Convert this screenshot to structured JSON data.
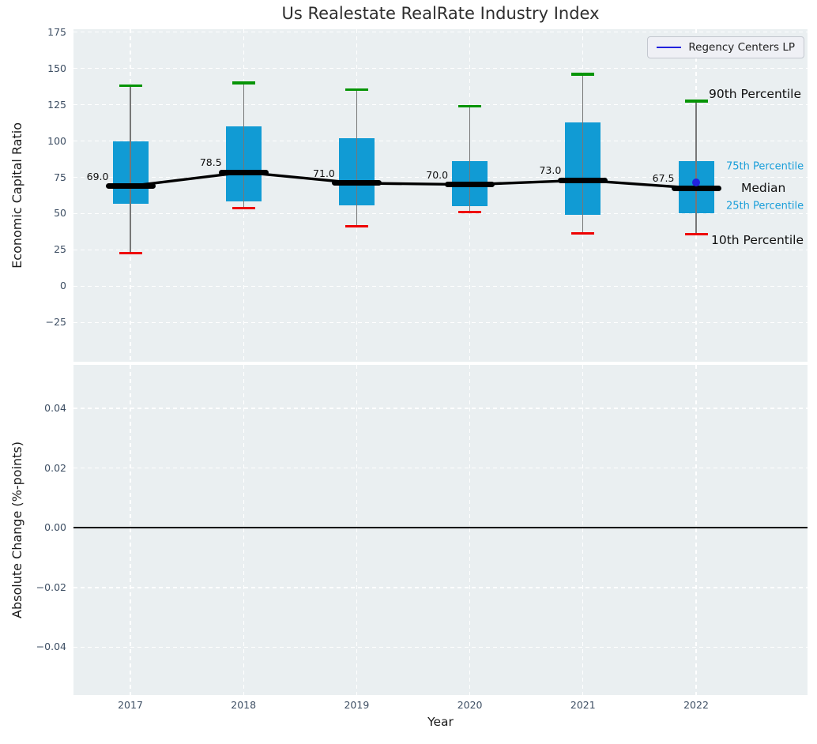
{
  "title": "Us Realestate RealRate Industry Index",
  "xlabel": "Year",
  "legend_label": "Regency Centers LP",
  "top_panel": {
    "ylabel": "Economic Capital Ratio"
  },
  "bottom_panel": {
    "ylabel": "Absolute Change (%-points)"
  },
  "colors": {
    "box": "#119bd4",
    "whisker": "#777777",
    "cap_90th": "#069406",
    "cap_10th": "#ee0000",
    "median": "#000000",
    "company_line": "#2222dd",
    "panel_background": "#eaeff1",
    "grid": "#ffffff",
    "tick_label": "#3d4e63",
    "accent_text": "#1a9ed9"
  },
  "chart_data": {
    "type": "boxplot",
    "title": "Us Realestate RealRate Industry Index",
    "xlabel": "Year",
    "categories": [
      "2017",
      "2018",
      "2019",
      "2020",
      "2021",
      "2022"
    ],
    "legend": {
      "entries": [
        {
          "label": "Regency Centers LP",
          "color": "#2222dd"
        }
      ],
      "position": "upper right"
    },
    "panels": [
      {
        "ylabel": "Economic Capital Ratio",
        "ylim": [
          -52,
          177
        ],
        "grid": true,
        "yticks": [
          {
            "v": 175,
            "label": "175"
          },
          {
            "v": 150,
            "label": "150"
          },
          {
            "v": 125,
            "label": "125"
          },
          {
            "v": 100,
            "label": "100"
          },
          {
            "v": 75,
            "label": "75"
          },
          {
            "v": 50,
            "label": "50"
          },
          {
            "v": 25,
            "label": "25"
          },
          {
            "v": 0,
            "label": "0"
          },
          {
            "v": -25,
            "label": "−25"
          }
        ],
        "boxes": [
          {
            "year": "2017",
            "p10": 23,
            "q1": 57,
            "median": 69.0,
            "q3": 99.5,
            "p90": 138,
            "median_label": "69.0"
          },
          {
            "year": "2018",
            "p10": 54,
            "q1": 58.5,
            "median": 78.5,
            "q3": 110,
            "p90": 140,
            "median_label": "78.5"
          },
          {
            "year": "2019",
            "p10": 41.5,
            "q1": 55.5,
            "median": 71.0,
            "q3": 102,
            "p90": 135.5,
            "median_label": "71.0"
          },
          {
            "year": "2020",
            "p10": 51,
            "q1": 55,
            "median": 70.0,
            "q3": 86,
            "p90": 124,
            "median_label": "70.0"
          },
          {
            "year": "2021",
            "p10": 36.5,
            "q1": 49,
            "median": 73.0,
            "q3": 113,
            "p90": 146,
            "median_label": "73.0"
          },
          {
            "year": "2022",
            "p10": 36,
            "q1": 50,
            "median": 67.5,
            "q3": 86,
            "p90": 127.5,
            "median_label": "67.5"
          }
        ],
        "median_line_series": {
          "name": "Industry median",
          "values": [
            69.0,
            78.5,
            71.0,
            70.0,
            73.0,
            67.5
          ]
        },
        "company_point": {
          "name": "Regency Centers LP",
          "year": "2022",
          "value": 71.4
        },
        "annotations": [
          {
            "text": "90th Percentile",
            "tone": "dark",
            "anchor": "p90"
          },
          {
            "text": "75th Percentile",
            "tone": "accent",
            "anchor": "q3"
          },
          {
            "text": "Median",
            "tone": "dark",
            "anchor": "median"
          },
          {
            "text": "25th Percentile",
            "tone": "accent",
            "anchor": "q1"
          },
          {
            "text": "10th Percentile",
            "tone": "dark",
            "anchor": "p10"
          }
        ]
      },
      {
        "ylabel": "Absolute Change (%-points)",
        "ylim": [
          -0.056,
          0.0545
        ],
        "grid": true,
        "yticks": [
          {
            "v": 0.04,
            "label": "0.04"
          },
          {
            "v": 0.02,
            "label": "0.02"
          },
          {
            "v": 0,
            "label": "0.00"
          },
          {
            "v": -0.02,
            "label": "−0.02"
          },
          {
            "v": -0.04,
            "label": "−0.04"
          }
        ],
        "zero_line": 0.0
      }
    ]
  }
}
